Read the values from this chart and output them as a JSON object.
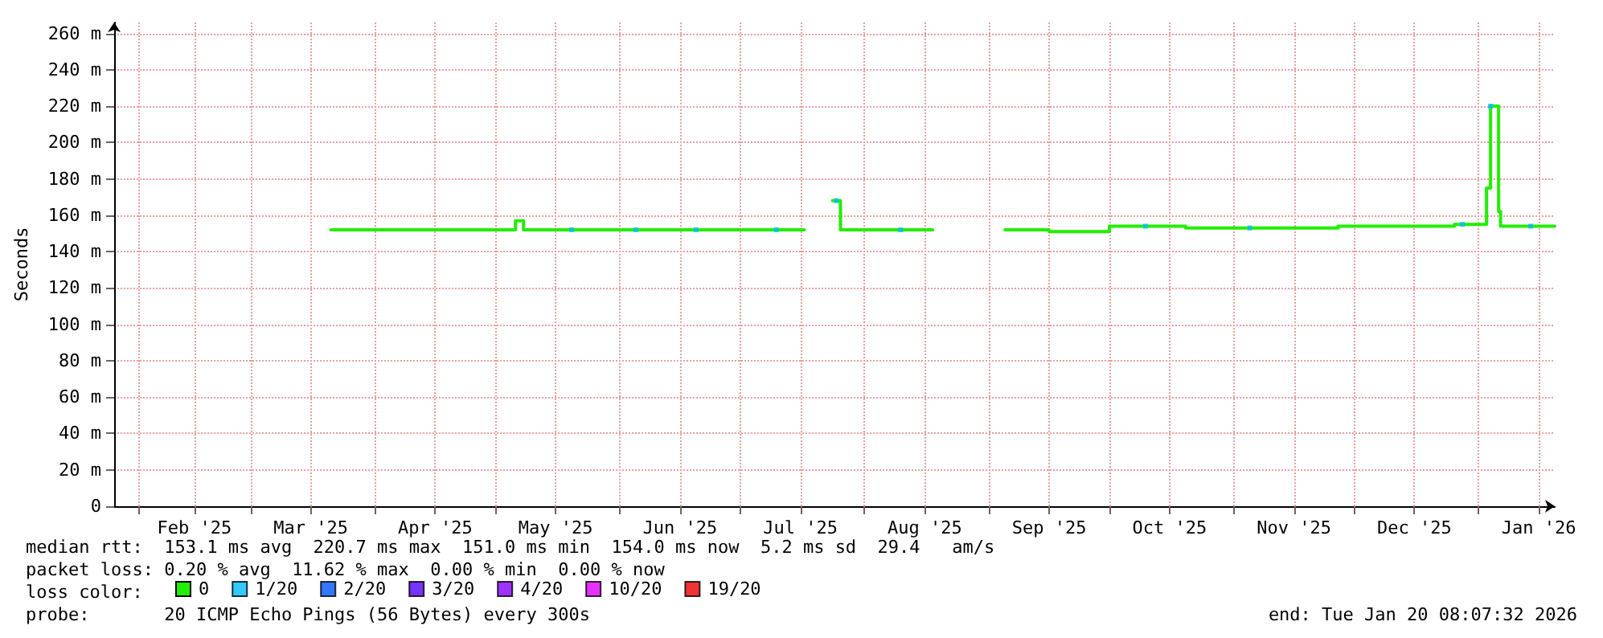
{
  "chart_data": {
    "type": "step",
    "ylabel": "Seconds",
    "xlim": [
      "2025-01-26",
      "2026-01-20"
    ],
    "xticks": [
      {
        "value": "2025-02-01",
        "label": null
      },
      {
        "value": "2025-02-15",
        "label": "Feb '25"
      },
      {
        "value": "2025-03-01",
        "label": null
      },
      {
        "value": "2025-03-16",
        "label": "Mar '25"
      },
      {
        "value": "2025-04-01",
        "label": null
      },
      {
        "value": "2025-04-16",
        "label": "Apr '25"
      },
      {
        "value": "2025-05-01",
        "label": null
      },
      {
        "value": "2025-05-16",
        "label": "May '25"
      },
      {
        "value": "2025-06-01",
        "label": null
      },
      {
        "value": "2025-06-16",
        "label": "Jun '25"
      },
      {
        "value": "2025-07-01",
        "label": null
      },
      {
        "value": "2025-07-16",
        "label": "Jul '25"
      },
      {
        "value": "2025-08-01",
        "label": null
      },
      {
        "value": "2025-08-16",
        "label": "Aug '25"
      },
      {
        "value": "2025-09-01",
        "label": null
      },
      {
        "value": "2025-09-16",
        "label": "Sep '25"
      },
      {
        "value": "2025-10-01",
        "label": null
      },
      {
        "value": "2025-10-16",
        "label": "Oct '25"
      },
      {
        "value": "2025-11-01",
        "label": null
      },
      {
        "value": "2025-11-16",
        "label": "Nov '25"
      },
      {
        "value": "2025-12-01",
        "label": null
      },
      {
        "value": "2025-12-16",
        "label": "Dec '25"
      },
      {
        "value": "2026-01-01",
        "label": null
      },
      {
        "value": "2026-01-16",
        "label": "Jan '26"
      }
    ],
    "ylim": [
      0,
      266
    ],
    "yticks": [
      {
        "value": 0,
        "label": "0"
      },
      {
        "value": 20,
        "label": "20 m"
      },
      {
        "value": 40,
        "label": "40 m"
      },
      {
        "value": 60,
        "label": "60 m"
      },
      {
        "value": 80,
        "label": "80 m"
      },
      {
        "value": 100,
        "label": "100 m"
      },
      {
        "value": 120,
        "label": "120 m"
      },
      {
        "value": 140,
        "label": "140 m"
      },
      {
        "value": 160,
        "label": "160 m"
      },
      {
        "value": 180,
        "label": "180 m"
      },
      {
        "value": 200,
        "label": "200 m"
      },
      {
        "value": 220,
        "label": "220 m"
      },
      {
        "value": 240,
        "label": "240 m"
      },
      {
        "value": 260,
        "label": "260 m"
      }
    ],
    "grid": true,
    "legend": "bottom",
    "series": [
      {
        "name": "0",
        "color": "#22ee00",
        "marker": "none",
        "x": [
          "2025-03-21",
          "2025-05-06",
          "2025-05-08",
          "2025-07-16",
          "2025-07-17",
          "2025-07-24",
          "2025-07-26",
          "2025-08-17",
          "2025-08-18",
          "2025-09-05",
          "2025-09-16",
          "2025-10-01",
          "2025-10-20",
          "2025-11-27",
          "2025-12-26",
          "2026-01-03",
          "2026-01-04",
          "2026-01-06",
          "2026-01-06T12:00",
          "2026-01-20"
        ],
        "values": [
          152,
          157,
          152,
          152,
          null,
          168,
          152,
          152,
          null,
          152,
          151,
          154,
          153,
          154,
          155,
          175,
          220,
          162,
          154,
          154
        ]
      },
      {
        "name": "1/20",
        "color": "#00bbff",
        "type": "scatter",
        "marker": "square",
        "x": [
          "2025-05-20",
          "2025-06-05",
          "2025-06-20",
          "2025-07-10",
          "2025-07-25",
          "2025-08-10",
          "2025-10-10",
          "2025-11-05",
          "2025-12-28",
          "2026-01-04",
          "2026-01-14"
        ],
        "values": [
          152,
          152,
          152,
          152,
          168,
          152,
          154,
          153,
          155,
          220,
          154
        ]
      },
      {
        "name": "2/20",
        "color": "#0055ff",
        "type": "scatter",
        "marker": "square"
      },
      {
        "name": "3/20",
        "color": "#5500ff",
        "type": "scatter",
        "marker": "square"
      },
      {
        "name": "4/20",
        "color": "#8800ff",
        "type": "scatter",
        "marker": "square"
      },
      {
        "name": "10/20",
        "color": "#dd00ff",
        "type": "scatter",
        "marker": "square"
      },
      {
        "name": "19/20",
        "color": "#ee0000",
        "type": "scatter",
        "marker": "square"
      }
    ],
    "annotations": [
      "median rtt:  153.1 ms avg  220.7 ms max  151.0 ms min  154.0 ms now  5.2 ms sd  29.4   am/s",
      "packet loss: 0.20 % avg  11.62 % max  0.00 % min  0.00 % now",
      "loss color:",
      "probe:       20 ICMP Echo Pings (56 Bytes) every 300s",
      "end: Tue Jan 20 08:07:32 2026"
    ]
  }
}
